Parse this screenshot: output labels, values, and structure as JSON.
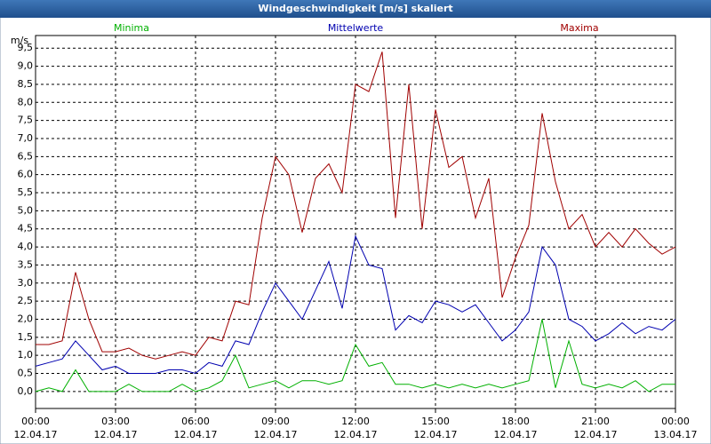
{
  "chart_data": {
    "type": "line",
    "title": "Windgeschwindigkeit [m/s] skaliert",
    "y_unit": "m/s",
    "x": [
      0,
      0.5,
      1,
      1.5,
      2,
      2.5,
      3,
      3.5,
      4,
      4.5,
      5,
      5.5,
      6,
      6.5,
      7,
      7.5,
      8,
      8.5,
      9,
      9.5,
      10,
      10.5,
      11,
      11.5,
      12,
      12.5,
      13,
      13.5,
      14,
      14.5,
      15,
      15.5,
      16,
      16.5,
      17,
      17.5,
      18,
      18.5,
      19,
      19.5,
      20,
      20.5,
      21,
      21.5,
      22,
      22.5,
      23,
      23.5,
      24
    ],
    "series": [
      {
        "name": "Minima",
        "color": "#00b000",
        "values": [
          0.0,
          0.1,
          0.0,
          0.6,
          0.0,
          0.0,
          0.0,
          0.2,
          0.0,
          0.0,
          0.0,
          0.2,
          0.0,
          0.1,
          0.3,
          1.0,
          0.1,
          0.2,
          0.3,
          0.1,
          0.3,
          0.3,
          0.2,
          0.3,
          1.3,
          0.7,
          0.8,
          0.2,
          0.2,
          0.1,
          0.2,
          0.1,
          0.2,
          0.1,
          0.2,
          0.1,
          0.2,
          0.3,
          2.0,
          0.1,
          1.4,
          0.2,
          0.1,
          0.2,
          0.1,
          0.3,
          0.0,
          0.2,
          0.2
        ]
      },
      {
        "name": "Mittelwerte",
        "color": "#0000b0",
        "values": [
          0.7,
          0.8,
          0.9,
          1.4,
          1.0,
          0.6,
          0.7,
          0.5,
          0.5,
          0.5,
          0.6,
          0.6,
          0.5,
          0.8,
          0.7,
          1.4,
          1.3,
          2.2,
          3.0,
          2.5,
          2.0,
          2.8,
          3.6,
          2.3,
          4.3,
          3.5,
          3.4,
          1.7,
          2.1,
          1.9,
          2.5,
          2.4,
          2.2,
          2.4,
          1.9,
          1.4,
          1.7,
          2.2,
          4.0,
          3.5,
          2.0,
          1.8,
          1.4,
          1.6,
          1.9,
          1.6,
          1.8,
          1.7,
          2.0
        ]
      },
      {
        "name": "Maxima",
        "color": "#a00000",
        "values": [
          1.3,
          1.3,
          1.4,
          3.3,
          2.0,
          1.1,
          1.1,
          1.2,
          1.0,
          0.9,
          1.0,
          1.1,
          1.0,
          1.5,
          1.4,
          2.5,
          2.4,
          4.8,
          6.5,
          6.0,
          4.4,
          5.9,
          6.3,
          5.5,
          8.5,
          8.3,
          9.4,
          4.8,
          8.5,
          4.5,
          7.8,
          6.2,
          6.5,
          4.8,
          5.9,
          2.6,
          3.7,
          4.6,
          7.7,
          5.8,
          4.5,
          4.9,
          4.0,
          4.4,
          4.0,
          4.5,
          4.1,
          3.8,
          4.0
        ]
      }
    ],
    "xlim": [
      0,
      24
    ],
    "xticks": [
      {
        "value": 0,
        "label": "00:00"
      },
      {
        "value": 3,
        "label": "03:00"
      },
      {
        "value": 6,
        "label": "06:00"
      },
      {
        "value": 9,
        "label": "09:00"
      },
      {
        "value": 12,
        "label": "12:00"
      },
      {
        "value": 15,
        "label": "15:00"
      },
      {
        "value": 18,
        "label": "18:00"
      },
      {
        "value": 21,
        "label": "21:00"
      },
      {
        "value": 24,
        "label": "00:00"
      }
    ],
    "xtick_dates": [
      "12.04.17",
      "12.04.17",
      "12.04.17",
      "12.04.17",
      "12.04.17",
      "12.04.17",
      "12.04.17",
      "12.04.17",
      "13.04.17"
    ],
    "ylim": [
      -0.47,
      9.85
    ],
    "yticks": [
      {
        "value": 0,
        "label": "0,0"
      },
      {
        "value": 0.5,
        "label": "0,5"
      },
      {
        "value": 1,
        "label": "1,0"
      },
      {
        "value": 1.5,
        "label": "1,5"
      },
      {
        "value": 2,
        "label": "2,0"
      },
      {
        "value": 2.5,
        "label": "2,5"
      },
      {
        "value": 3,
        "label": "3,0"
      },
      {
        "value": 3.5,
        "label": "3,5"
      },
      {
        "value": 4,
        "label": "4,0"
      },
      {
        "value": 4.5,
        "label": "4,5"
      },
      {
        "value": 5,
        "label": "5,0"
      },
      {
        "value": 5.5,
        "label": "5,5"
      },
      {
        "value": 6,
        "label": "6,0"
      },
      {
        "value": 6.5,
        "label": "6,5"
      },
      {
        "value": 7,
        "label": "7,0"
      },
      {
        "value": 7.5,
        "label": "7,5"
      },
      {
        "value": 8,
        "label": "8,0"
      },
      {
        "value": 8.5,
        "label": "8,5"
      },
      {
        "value": 9,
        "label": "9,0"
      },
      {
        "value": 9.5,
        "label": "9,5"
      }
    ],
    "grid": true
  }
}
